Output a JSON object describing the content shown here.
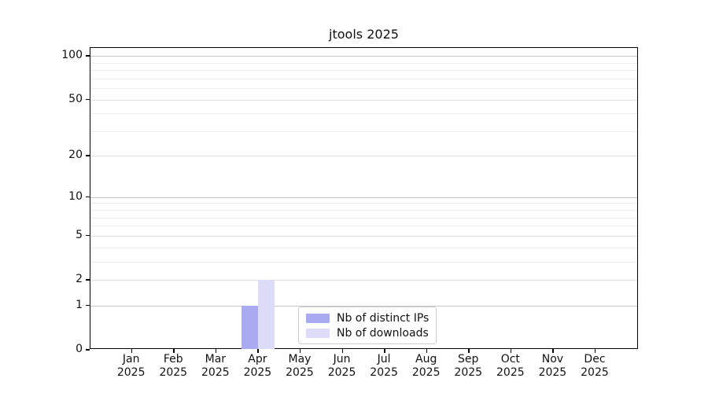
{
  "chart_data": {
    "type": "bar",
    "title": "jtools 2025",
    "categories": [
      "Jan",
      "Feb",
      "Mar",
      "Apr",
      "May",
      "Jun",
      "Jul",
      "Aug",
      "Sep",
      "Oct",
      "Nov",
      "Dec"
    ],
    "category_year": "2025",
    "series": [
      {
        "name": "Nb of distinct IPs",
        "color": "#a9aaf1",
        "values": [
          0,
          0,
          0,
          1,
          0,
          0,
          0,
          0,
          0,
          0,
          0,
          0
        ]
      },
      {
        "name": "Nb of downloads",
        "color": "#dcdcf9",
        "values": [
          0,
          0,
          0,
          2,
          0,
          0,
          0,
          0,
          0,
          0,
          0,
          0
        ]
      }
    ],
    "yticks_major": [
      0,
      1,
      2,
      5,
      10,
      20,
      50,
      100
    ],
    "yticks_decade": [
      1,
      10,
      100
    ],
    "yticks_minor": [
      3,
      4,
      6,
      7,
      8,
      9,
      30,
      40,
      60,
      70,
      80,
      90
    ],
    "scale": "log1p",
    "ylim": [
      0,
      113.5
    ],
    "grid": "horizontal",
    "legend_position": "lower center inside axes",
    "colors": {
      "grid_decade": "#c6c6c6",
      "grid_major": "#e0e0e0",
      "grid_minor": "#ededed",
      "axis": "#000000",
      "text": "#111111",
      "background": "#ffffff",
      "legend_border": "#cccccc"
    }
  }
}
